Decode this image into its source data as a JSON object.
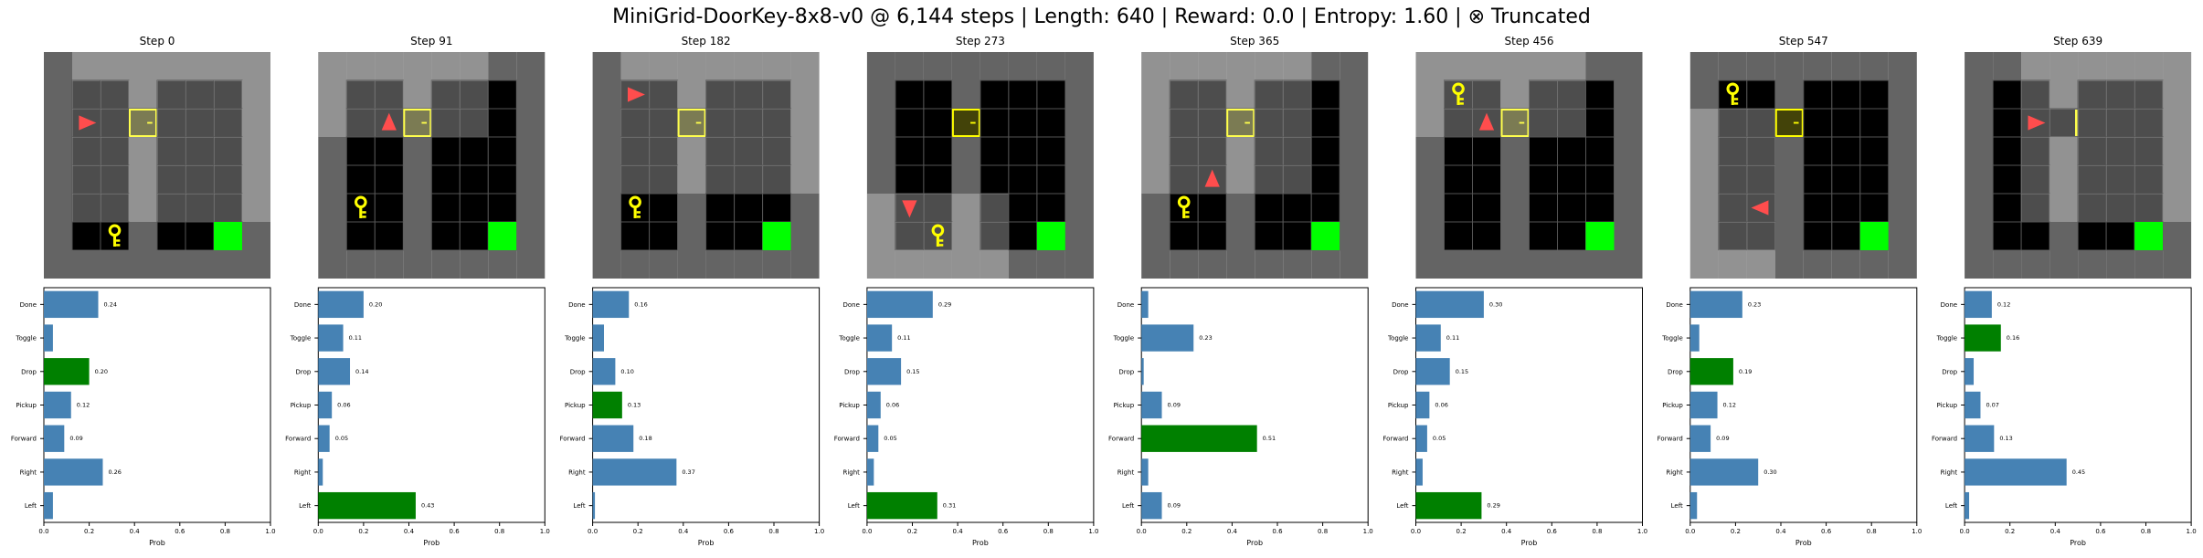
{
  "title": "MiniGrid-DoorKey-8x8-v0 @ 6,144 steps | Length: 640 | Reward: 0.0 | Entropy: 1.60 | ⊗ Truncated",
  "colors": {
    "bar_default": "#4682b4",
    "bar_selected": "#008000",
    "wall": "#646464",
    "floor": "#000000",
    "visible_overlay": "#a0a0a0",
    "agent": "#ff4d4d",
    "key": "#ffff00",
    "door": "#ffff00",
    "goal": "#00ff00"
  },
  "chart_data": {
    "type": "bar",
    "orientation": "horizontal",
    "categories": [
      "Done",
      "Toggle",
      "Drop",
      "Pickup",
      "Forward",
      "Right",
      "Left"
    ],
    "xlabel": "Prob",
    "xlim": [
      0,
      1.0
    ],
    "xticks": [
      "0.0",
      "0.2",
      "0.4",
      "0.6",
      "0.8",
      "1.0"
    ],
    "panels": [
      {
        "step_label": "Step 0",
        "values": [
          0.24,
          0.04,
          0.2,
          0.12,
          0.09,
          0.26,
          0.04
        ],
        "labels": [
          "0.24",
          "",
          "0.20",
          "0.12",
          "0.09",
          "0.26",
          ""
        ],
        "selected": "Drop",
        "grid": {
          "view": "right",
          "agent": [
            1,
            2
          ],
          "dir": "right",
          "key": [
            2,
            6
          ],
          "door_open": false
        }
      },
      {
        "step_label": "Step 91",
        "values": [
          0.2,
          0.11,
          0.14,
          0.06,
          0.05,
          0.02,
          0.43
        ],
        "labels": [
          "0.20",
          "0.11",
          "0.14",
          "0.06",
          "0.05",
          "",
          "0.43"
        ],
        "selected": "Left",
        "grid": {
          "view": "up",
          "agent": [
            2,
            2
          ],
          "dir": "up",
          "key": [
            1,
            5
          ],
          "door_open": false
        }
      },
      {
        "step_label": "Step 182",
        "values": [
          0.16,
          0.05,
          0.1,
          0.13,
          0.18,
          0.37,
          0.01
        ],
        "labels": [
          "0.16",
          "",
          "0.10",
          "0.13",
          "0.18",
          "0.37",
          ""
        ],
        "selected": "Pickup",
        "grid": {
          "view": "right",
          "agent": [
            1,
            1
          ],
          "dir": "right",
          "key": [
            1,
            5
          ],
          "door_open": false
        }
      },
      {
        "step_label": "Step 273",
        "values": [
          0.29,
          0.11,
          0.15,
          0.06,
          0.05,
          0.03,
          0.31
        ],
        "labels": [
          "0.29",
          "0.11",
          "0.15",
          "0.06",
          "0.05",
          "",
          "0.31"
        ],
        "selected": "Left",
        "grid": {
          "view": "down",
          "agent": [
            1,
            5
          ],
          "dir": "down",
          "key": [
            2,
            6
          ],
          "door_open": false
        }
      },
      {
        "step_label": "Step 365",
        "values": [
          0.03,
          0.23,
          0.01,
          0.09,
          0.51,
          0.03,
          0.09
        ],
        "labels": [
          "",
          "0.23",
          "",
          "0.09",
          "0.51",
          "",
          "0.09"
        ],
        "selected": "Forward",
        "grid": {
          "view": "up",
          "agent": [
            2,
            4
          ],
          "dir": "up",
          "key": [
            1,
            5
          ],
          "door_open": false
        }
      },
      {
        "step_label": "Step 456",
        "values": [
          0.3,
          0.11,
          0.15,
          0.06,
          0.05,
          0.03,
          0.29
        ],
        "labels": [
          "0.30",
          "0.11",
          "0.15",
          "0.06",
          "0.05",
          "",
          "0.29"
        ],
        "selected": "Left",
        "grid": {
          "view": "up",
          "agent": [
            2,
            2
          ],
          "dir": "up",
          "key": [
            1,
            1
          ],
          "door_open": false
        }
      },
      {
        "step_label": "Step 547",
        "values": [
          0.23,
          0.04,
          0.19,
          0.12,
          0.09,
          0.3,
          0.03
        ],
        "labels": [
          "0.23",
          "",
          "0.19",
          "0.12",
          "0.09",
          "0.30",
          ""
        ],
        "selected": "Drop",
        "grid": {
          "view": "left",
          "agent": [
            2,
            5
          ],
          "dir": "left",
          "key": [
            1,
            1
          ],
          "door_open": false
        }
      },
      {
        "step_label": "Step 639",
        "values": [
          0.12,
          0.16,
          0.04,
          0.07,
          0.13,
          0.45,
          0.02
        ],
        "labels": [
          "0.12",
          "0.16",
          "",
          "0.07",
          "0.13",
          "0.45",
          ""
        ],
        "selected": "Toggle",
        "grid": {
          "view": "right",
          "agent": [
            2,
            2
          ],
          "dir": "right",
          "key": null,
          "door_open": true
        }
      }
    ]
  }
}
